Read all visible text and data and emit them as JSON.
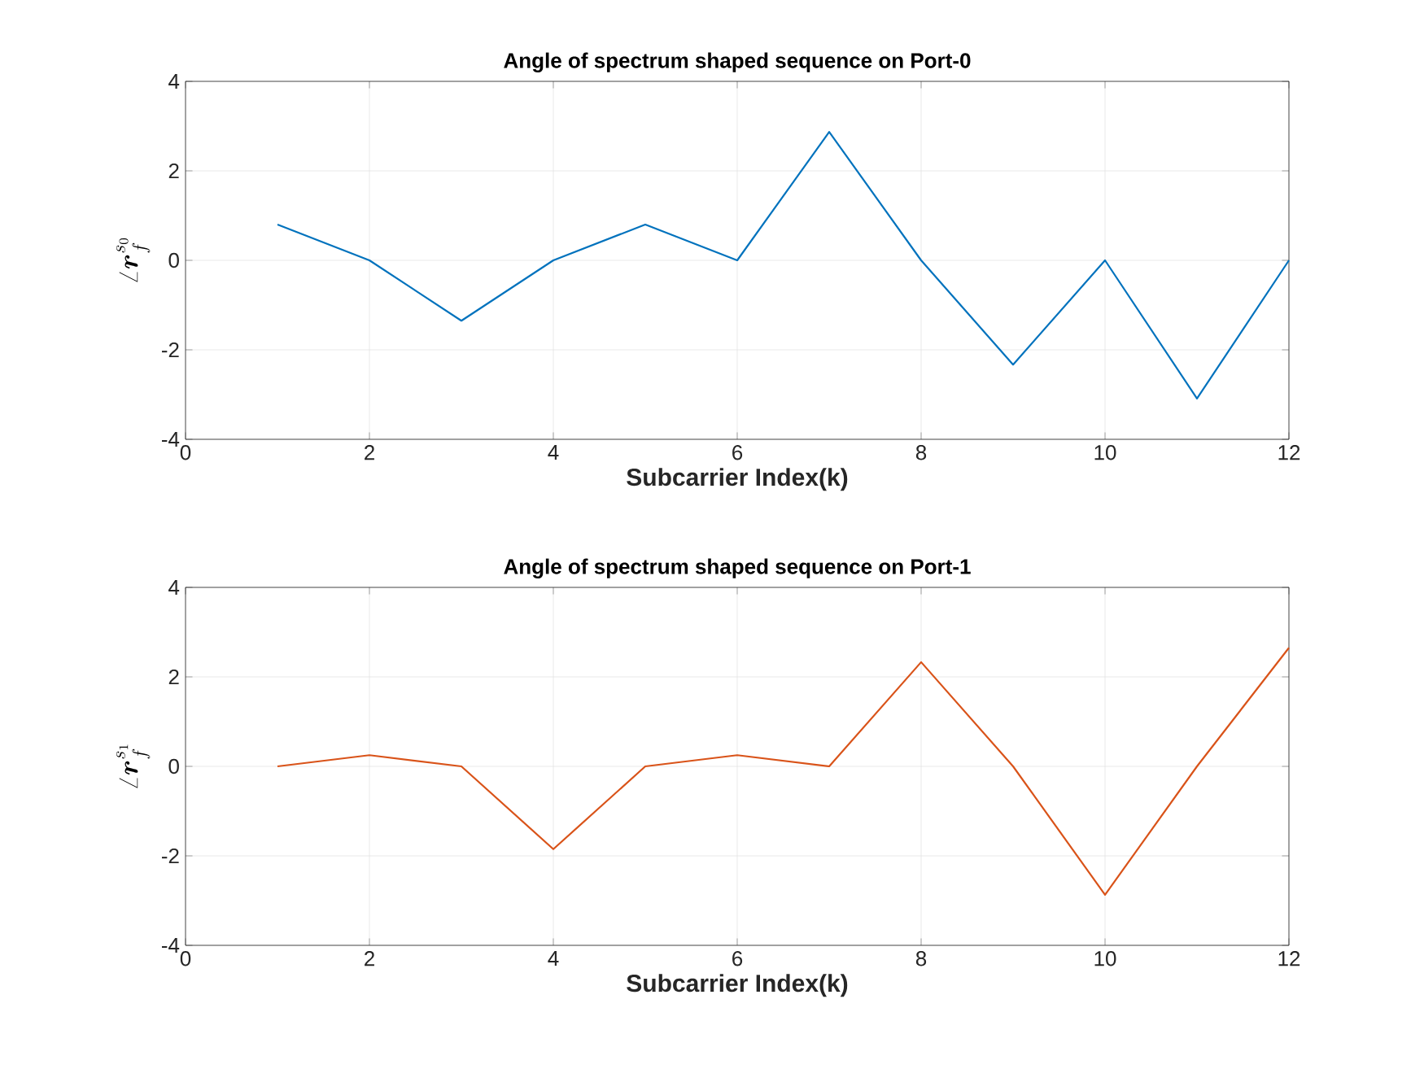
{
  "chart_data": [
    {
      "type": "line",
      "title": "Angle of spectrum shaped sequence on Port-0",
      "xlabel": "Subcarrier Index(k)",
      "ylabel": "\\angle \\boldsymbol{r}_f^{s_0}",
      "x": [
        1,
        2,
        3,
        4,
        5,
        6,
        7,
        8,
        9,
        10,
        11,
        12
      ],
      "series": [
        {
          "color": "#0072bd",
          "values": [
            0.8,
            0,
            -1.35,
            0,
            0.8,
            0,
            2.87,
            0,
            -2.33,
            0,
            -3.09,
            0
          ]
        }
      ],
      "xlim": [
        0,
        12
      ],
      "xticks": [
        0,
        2,
        4,
        6,
        8,
        10,
        12
      ],
      "ylim": [
        -4,
        4
      ],
      "yticks": [
        -4,
        -2,
        0,
        2,
        4
      ],
      "grid": true,
      "marker": "none",
      "line_style": "solid"
    },
    {
      "type": "line",
      "title": "Angle of spectrum shaped sequence on Port-1",
      "xlabel": "Subcarrier Index(k)",
      "ylabel": "\\angle \\boldsymbol{r}_f^{s_1}",
      "x": [
        1,
        2,
        3,
        4,
        5,
        6,
        7,
        8,
        9,
        10,
        11,
        12
      ],
      "series": [
        {
          "color": "#d95319",
          "values": [
            0,
            0.25,
            0,
            -1.85,
            0,
            0.25,
            0,
            2.33,
            0,
            -2.87,
            0,
            2.65
          ]
        }
      ],
      "xlim": [
        0,
        12
      ],
      "xticks": [
        0,
        2,
        4,
        6,
        8,
        10,
        12
      ],
      "ylim": [
        -4,
        4
      ],
      "yticks": [
        -4,
        -2,
        0,
        2,
        4
      ],
      "grid": true,
      "marker": "none",
      "line_style": "solid"
    }
  ]
}
